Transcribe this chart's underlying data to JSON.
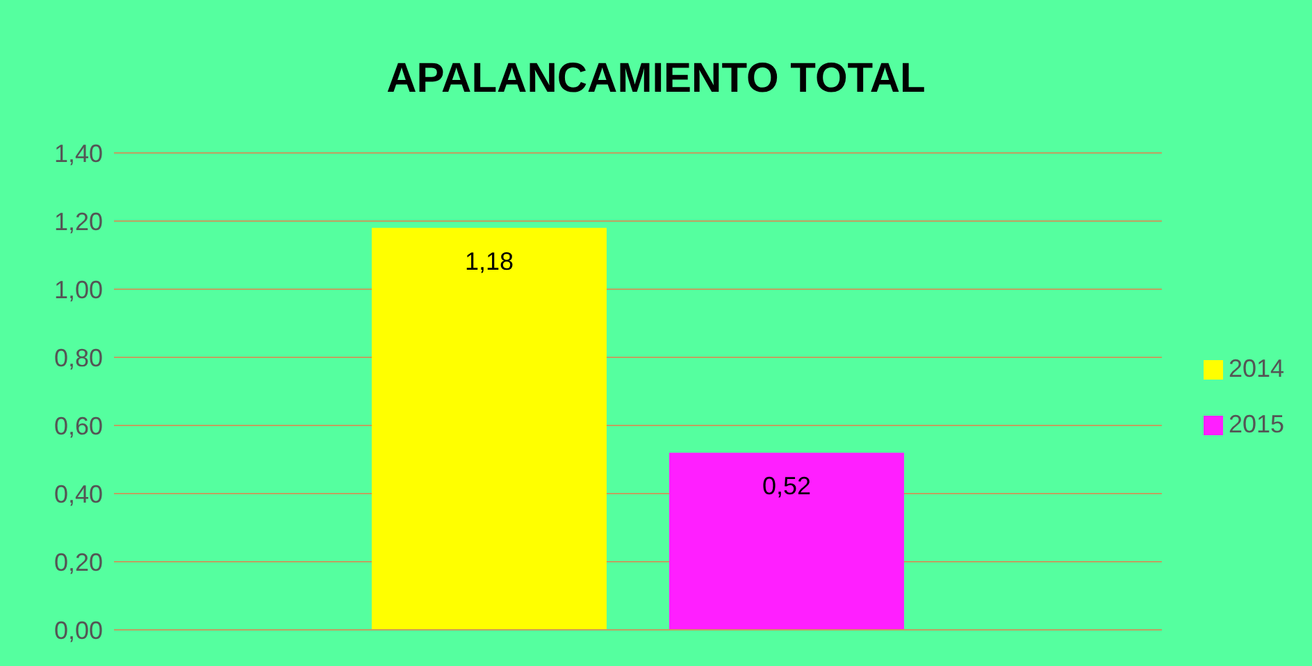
{
  "chart_data": {
    "type": "bar",
    "title": "APALANCAMIENTO TOTAL",
    "categories": [
      null
    ],
    "series": [
      {
        "name": "2014",
        "color": "#ffff00",
        "values": [
          1.18
        ],
        "value_labels": [
          "1,18"
        ]
      },
      {
        "name": "2015",
        "color": "#ff1fff",
        "values": [
          0.52
        ],
        "value_labels": [
          "0,52"
        ]
      }
    ],
    "ylim": [
      0,
      1.4
    ],
    "yticks": [
      {
        "value": 0,
        "label": "0,00"
      },
      {
        "value": 0.2,
        "label": "0,20"
      },
      {
        "value": 0.4,
        "label": "0,40"
      },
      {
        "value": 0.6,
        "label": "0,60"
      },
      {
        "value": 0.8,
        "label": "0,80"
      },
      {
        "value": 1,
        "label": "1,00"
      },
      {
        "value": 1.2,
        "label": "1,20"
      },
      {
        "value": 1.4,
        "label": "1,40"
      }
    ],
    "grid": "y",
    "legend": "right"
  }
}
